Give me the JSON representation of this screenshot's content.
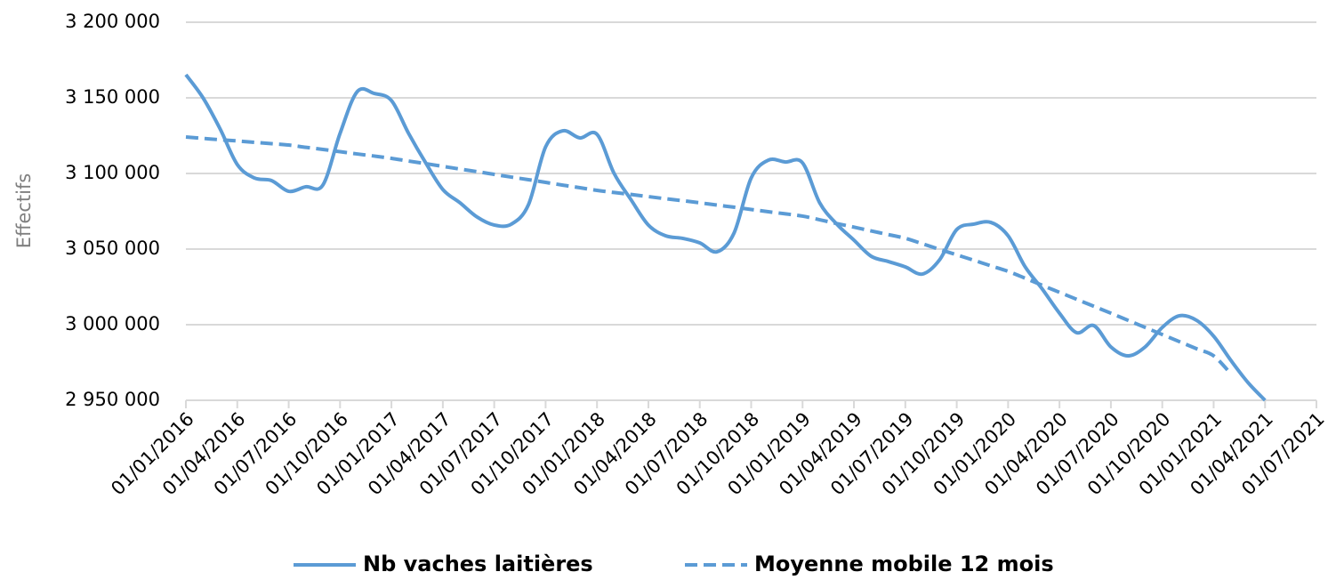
{
  "chart_data": {
    "type": "line",
    "y_label": "Effectifs",
    "x": [
      "01/01/2016",
      "01/02/2016",
      "01/03/2016",
      "01/04/2016",
      "01/05/2016",
      "01/06/2016",
      "01/07/2016",
      "01/08/2016",
      "01/09/2016",
      "01/10/2016",
      "01/11/2016",
      "01/12/2016",
      "01/01/2017",
      "01/02/2017",
      "01/03/2017",
      "01/04/2017",
      "01/05/2017",
      "01/06/2017",
      "01/07/2017",
      "01/08/2017",
      "01/09/2017",
      "01/10/2017",
      "01/11/2017",
      "01/12/2017",
      "01/01/2018",
      "01/02/2018",
      "01/03/2018",
      "01/04/2018",
      "01/05/2018",
      "01/06/2018",
      "01/07/2018",
      "01/08/2018",
      "01/09/2018",
      "01/10/2018",
      "01/11/2018",
      "01/12/2018",
      "01/01/2019",
      "01/02/2019",
      "01/03/2019",
      "01/04/2019",
      "01/05/2019",
      "01/06/2019",
      "01/07/2019",
      "01/08/2019",
      "01/09/2019",
      "01/10/2019",
      "01/11/2019",
      "01/12/2019",
      "01/01/2020",
      "01/02/2020",
      "01/03/2020",
      "01/04/2020",
      "01/05/2020",
      "01/06/2020",
      "01/07/2020",
      "01/08/2020",
      "01/09/2020",
      "01/10/2020",
      "01/11/2020",
      "01/12/2020",
      "01/01/2021",
      "01/02/2021",
      "01/03/2021",
      "01/04/2021"
    ],
    "series": [
      {
        "name": "Nb vaches laitières",
        "color": "#5b9bd5",
        "dashed": false,
        "values": [
          3165300,
          3150000,
          3129400,
          3105900,
          3097000,
          3095300,
          3088200,
          3091200,
          3092400,
          3126500,
          3154100,
          3152900,
          3148200,
          3126500,
          3107000,
          3089400,
          3080600,
          3071200,
          3065900,
          3066500,
          3079400,
          3117600,
          3128200,
          3123500,
          3125900,
          3100000,
          3082400,
          3065900,
          3058800,
          3057100,
          3054100,
          3048200,
          3060600,
          3097000,
          3108800,
          3107600,
          3107000,
          3080600,
          3066500,
          3055900,
          3045300,
          3041800,
          3038200,
          3033500,
          3042900,
          3062900,
          3066500,
          3067600,
          3058800,
          3038200,
          3023500,
          3007600,
          2994700,
          2999400,
          2985300,
          2979400,
          2985300,
          2998200,
          3005900,
          3002900,
          2992400,
          2976500,
          2961800,
          2950000
        ]
      },
      {
        "name": "Moyenne mobile 12 mois",
        "color": "#5b9bd5",
        "dashed": true,
        "values": [
          3124100,
          3123200,
          3122300,
          3121500,
          3120600,
          3119700,
          3118800,
          3117300,
          3115900,
          3114400,
          3112900,
          3111500,
          3110000,
          3108200,
          3106500,
          3104700,
          3102900,
          3101200,
          3099400,
          3097600,
          3095900,
          3094100,
          3092300,
          3090600,
          3088800,
          3087400,
          3086100,
          3084700,
          3083300,
          3082000,
          3080600,
          3079100,
          3077700,
          3076200,
          3074700,
          3073300,
          3071800,
          3069400,
          3066900,
          3064500,
          3062000,
          3059600,
          3057100,
          3053500,
          3049800,
          3046200,
          3042600,
          3038900,
          3035300,
          3030700,
          3026000,
          3021400,
          3016800,
          3012200,
          3007600,
          3002900,
          2998200,
          2993500,
          2988800,
          2984100,
          2979400,
          2967600,
          null,
          null
        ]
      }
    ],
    "xlim": [
      "01/01/2016",
      "01/07/2021"
    ],
    "xticks": [
      "01/01/2016",
      "01/04/2016",
      "01/07/2016",
      "01/10/2016",
      "01/01/2017",
      "01/04/2017",
      "01/07/2017",
      "01/10/2017",
      "01/01/2018",
      "01/04/2018",
      "01/07/2018",
      "01/10/2018",
      "01/01/2019",
      "01/04/2019",
      "01/07/2019",
      "01/10/2019",
      "01/01/2020",
      "01/04/2020",
      "01/07/2020",
      "01/10/2020",
      "01/01/2021",
      "01/04/2021",
      "01/07/2021"
    ],
    "ylim": [
      2950000,
      3200000
    ],
    "yticks": [
      {
        "value": 2950000,
        "label": "2 950 000"
      },
      {
        "value": 3000000,
        "label": "3 000 000"
      },
      {
        "value": 3050000,
        "label": "3 050 000"
      },
      {
        "value": 3100000,
        "label": "3 100 000"
      },
      {
        "value": 3150000,
        "label": "3 150 000"
      },
      {
        "value": 3200000,
        "label": "3 200 000"
      }
    ],
    "grid": true,
    "legend": "bottom"
  }
}
